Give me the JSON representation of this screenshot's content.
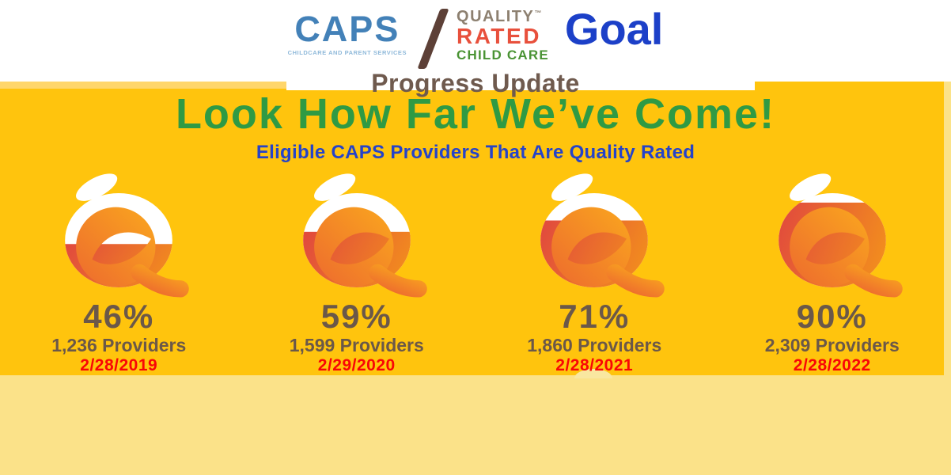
{
  "header": {
    "caps": {
      "name": "CAPS",
      "tagline": "CHILDCARE AND PARENT SERVICES"
    },
    "quality_rated": {
      "line1": "QUALITY",
      "trademark": "™",
      "line2": "RATED",
      "line3": "CHILD CARE"
    },
    "goal_label": "Goal",
    "progress_title": "Progress Update"
  },
  "main": {
    "title": "Look How Far We’ve Come!",
    "subtitle": "Eligible CAPS Providers That Are Quality Rated"
  },
  "gauges": [
    {
      "percent": 46,
      "percent_label": "46%",
      "providers_label": "1,236 Providers",
      "date_label": "2/28/2019"
    },
    {
      "percent": 59,
      "percent_label": "59%",
      "providers_label": "1,599 Providers",
      "date_label": "2/29/2020"
    },
    {
      "percent": 71,
      "percent_label": "71%",
      "providers_label": "1,860 Providers",
      "date_label": "2/28/2021"
    },
    {
      "percent": 90,
      "percent_label": "90%",
      "providers_label": "2,309 Providers",
      "date_label": "2/28/2022"
    }
  ],
  "chart_data": {
    "type": "bar",
    "title": "Look How Far We’ve Come!",
    "subtitle": "Eligible CAPS Providers That Are Quality Rated",
    "categories": [
      "2/28/2019",
      "2/29/2020",
      "2/28/2021",
      "2/28/2022"
    ],
    "series": [
      {
        "name": "Eligible CAPS providers that are Quality Rated (%)",
        "values": [
          46,
          59,
          71,
          90
        ]
      },
      {
        "name": "Providers",
        "values": [
          1236,
          1599,
          1860,
          2309
        ]
      }
    ],
    "ylim": [
      0,
      100
    ],
    "grid": false,
    "legend_position": "none"
  },
  "palette": {
    "bg_yellow": "#FFC40D",
    "footer_yellow": "#FBE289",
    "edge_yellow": "#FFD66B",
    "bump_cream": "#F9E7A0",
    "white": "#FFFFFF",
    "caps_blue": "#4381B8",
    "caps_light_blue": "#8FB9DA",
    "slash_brown": "#5D4037",
    "quality_taupe": "#8D8070",
    "rated_red": "#E8503C",
    "childcare_green": "#4A9334",
    "goal_blue": "#1C40C8",
    "progress_brown": "#6F5A4E",
    "title_green": "#2F9A44",
    "subtitle_blue": "#2543C9",
    "stat_brown": "#6B5849",
    "date_red": "#F90606",
    "peach_fill_start": "#E0463F",
    "peach_fill_end": "#F28C1E",
    "q_orange_start": "#ED6A2E",
    "q_orange_end": "#FAA71E"
  }
}
